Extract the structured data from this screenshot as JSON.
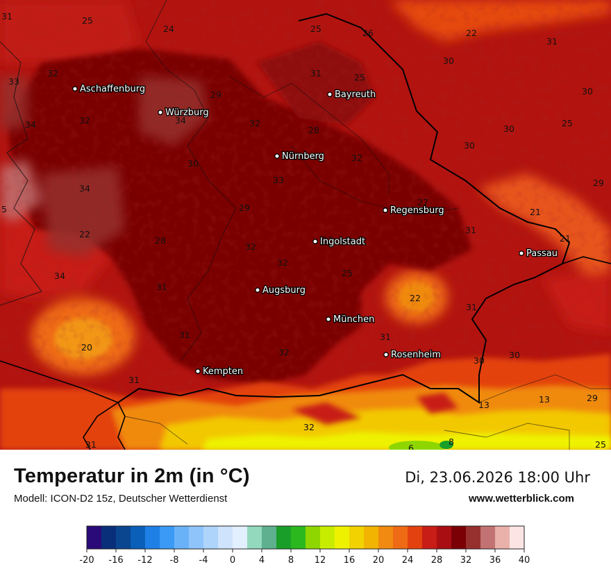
{
  "header": {
    "title": "Temperatur in 2m (in °C)",
    "model": "Modell: ICON-D2 15z, Deutscher Wetterdienst",
    "datetime": "Di, 23.06.2026 18:00 Uhr",
    "website": "www.wetterblick.com"
  },
  "cities": [
    {
      "name": "Aschaffenburg"
    },
    {
      "name": "Würzburg"
    },
    {
      "name": "Bayreuth"
    },
    {
      "name": "Nürnberg"
    },
    {
      "name": "Regensburg"
    },
    {
      "name": "Ingolstadt"
    },
    {
      "name": "Passau"
    },
    {
      "name": "Augsburg"
    },
    {
      "name": "München"
    },
    {
      "name": "Rosenheim"
    },
    {
      "name": "Kempten"
    }
  ],
  "isolines": [
    "31",
    "25",
    "24",
    "25",
    "26",
    "22",
    "31",
    "32",
    "33",
    "31",
    "25",
    "30",
    "30",
    "29",
    "34",
    "32",
    "28",
    "30",
    "30",
    "25",
    "30",
    "34",
    "32",
    "29",
    "32",
    "33",
    "27",
    "21",
    "29",
    "5",
    "34",
    "28",
    "32",
    "22",
    "32",
    "31",
    "21",
    "34",
    "32",
    "25",
    "31",
    "22",
    "31",
    "30",
    "20",
    "31",
    "32",
    "31",
    "30",
    "13",
    "13",
    "29",
    "32",
    "8",
    "6",
    "25",
    "31",
    "31"
  ],
  "legend": {
    "colors": [
      "#2a0a78",
      "#0a2f7a",
      "#0a4590",
      "#0a5fb8",
      "#1e7fe6",
      "#3a9af5",
      "#6ab2f8",
      "#8ec4fa",
      "#aed4fb",
      "#cfe3fc",
      "#e2efff",
      "#93d9be",
      "#5fb08f",
      "#1a9e2a",
      "#2ab81e",
      "#8fd600",
      "#c8ec00",
      "#eef200",
      "#f2d200",
      "#f2b400",
      "#f08a10",
      "#ee6a14",
      "#e3420f",
      "#c81c16",
      "#a90e12",
      "#7a0006",
      "#96302e",
      "#c27272",
      "#eab0aa",
      "#fde4e4"
    ],
    "tick_labels": [
      "-20",
      "-16",
      "-12",
      "-8",
      "-4",
      "0",
      "4",
      "8",
      "12",
      "16",
      "20",
      "24",
      "28",
      "32",
      "36",
      "40"
    ],
    "min": -20,
    "max": 40
  }
}
